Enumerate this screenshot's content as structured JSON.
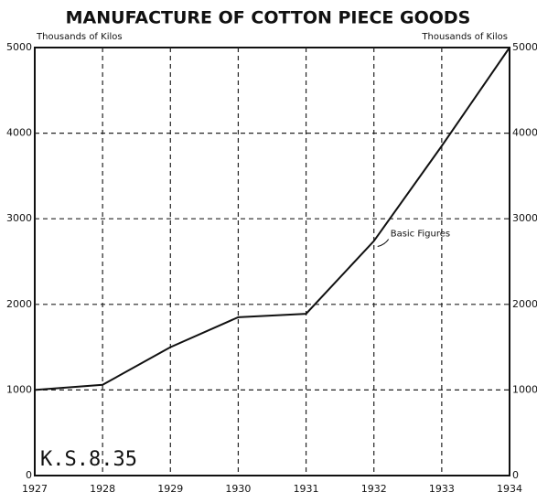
{
  "chart_data": {
    "type": "line",
    "title": "MANUFACTURE OF COTTON PIECE GOODS",
    "y_axis_label": "Thousands of Kilos",
    "y2_axis_label": "Thousands of Kilos",
    "categories": [
      "1927",
      "1928",
      "1929",
      "1930",
      "1931",
      "1932",
      "1933",
      "1934"
    ],
    "series": [
      {
        "name": "Basic Figures",
        "color": "#111111",
        "values": [
          1000,
          1060,
          1500,
          1850,
          1890,
          2740,
          3850,
          5000
        ]
      }
    ],
    "ylim": [
      0,
      5000
    ],
    "yticks": [
      0,
      1000,
      2000,
      3000,
      4000,
      5000
    ],
    "y2lim": [
      0,
      5000
    ],
    "y2ticks": [
      0,
      1000,
      2000,
      3000,
      4000,
      5000
    ],
    "grid": true,
    "stamp": "K.S.8.35"
  }
}
